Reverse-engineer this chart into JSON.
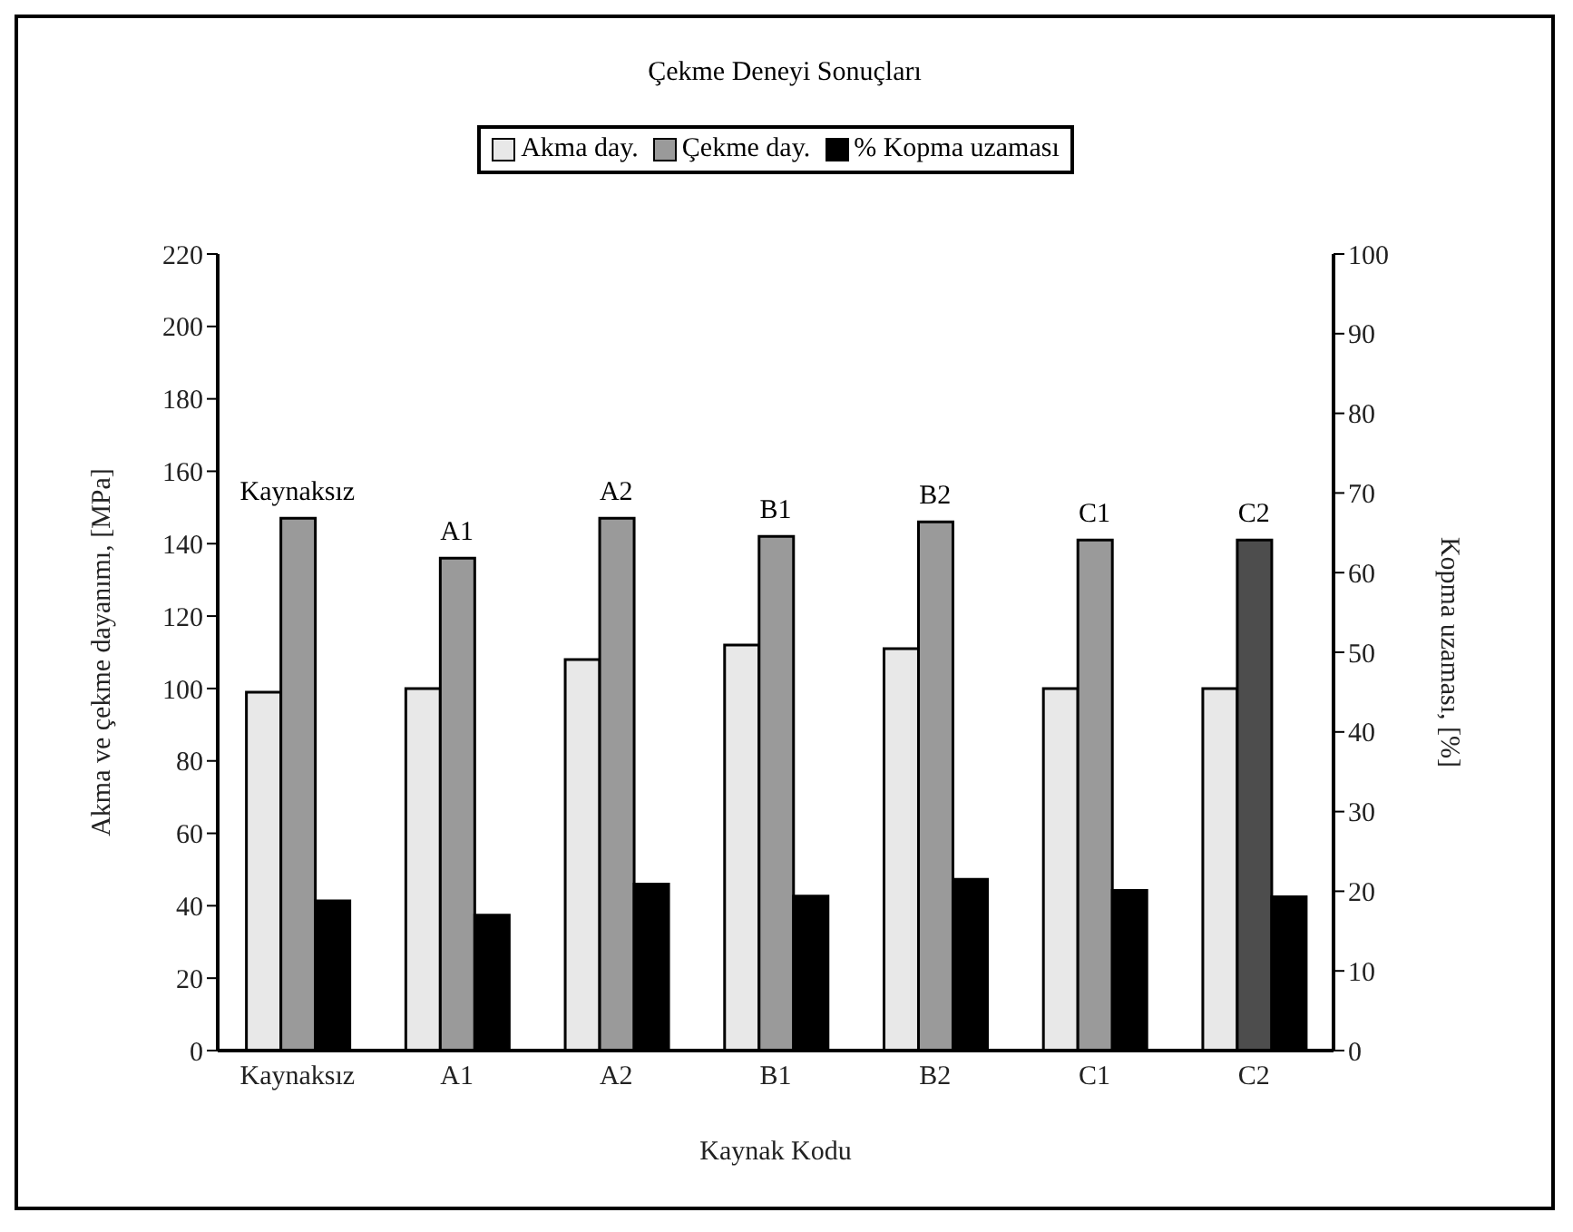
{
  "chart_data": {
    "type": "bar",
    "title": "Çekme Deneyi Sonuçları",
    "xlabel": "Kaynak Kodu",
    "ylabel": "Akma ve çekme dayanımı, [MPa]",
    "y2label": "Kopma uzaması, [%]",
    "categories": [
      "Kaynaksız",
      "A1",
      "A2",
      "B1",
      "B2",
      "C1",
      "C2"
    ],
    "series": [
      {
        "name": "Akma day.",
        "color": "#e8e8e8",
        "values": [
          99,
          100,
          108,
          112,
          111,
          100,
          100
        ]
      },
      {
        "name": "Çekme day.",
        "color": "#9a9a9a",
        "colors": [
          "#9a9a9a",
          "#9a9a9a",
          "#9a9a9a",
          "#9a9a9a",
          "#9a9a9a",
          "#9a9a9a",
          "#4d4d4d"
        ],
        "values": [
          147,
          136,
          147,
          142,
          146,
          141,
          141
        ]
      },
      {
        "name": "% Kopma uzaması",
        "color": "#000000",
        "axis": "y2",
        "values": [
          18.8,
          17,
          20.9,
          19.4,
          21.5,
          20.1,
          19.3
        ]
      }
    ],
    "ylim": [
      0,
      220
    ],
    "yticks": [
      0,
      20,
      40,
      60,
      80,
      100,
      120,
      140,
      160,
      180,
      200,
      220
    ],
    "y2lim": [
      0,
      100
    ],
    "y2ticks": [
      0,
      10,
      20,
      30,
      40,
      50,
      60,
      70,
      80,
      90,
      100
    ],
    "annotations": [
      {
        "text": "Kaynaksız",
        "x": "Kaynaksız",
        "y": 147
      },
      {
        "text": "A1",
        "x": "A1",
        "y": 136
      },
      {
        "text": "A2",
        "x": "A2",
        "y": 147
      },
      {
        "text": "B1",
        "x": "B1",
        "y": 142
      },
      {
        "text": "B2",
        "x": "B2",
        "y": 146
      },
      {
        "text": "C1",
        "x": "C1",
        "y": 141
      },
      {
        "text": "C2",
        "x": "C2",
        "y": 141
      }
    ],
    "legend": "top"
  }
}
